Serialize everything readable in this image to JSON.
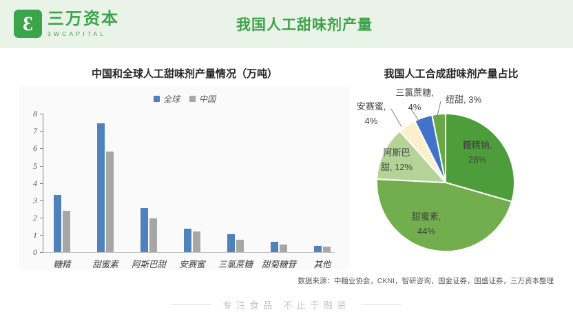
{
  "header": {
    "logo": {
      "name": "三万资本",
      "subname": "3WCAPITAL"
    },
    "title": "我国人工甜味剂产量"
  },
  "chart_data": [
    {
      "type": "bar",
      "title": "中国和全球人工甜味剂产量情况（万吨）",
      "categories": [
        "糖精",
        "甜蜜素",
        "阿斯巴甜",
        "安赛蜜",
        "三氯蔗糖",
        "甜菊糖苷",
        "其他"
      ],
      "series": [
        {
          "name": "全球",
          "color": "#4F81BD",
          "values": [
            3.3,
            7.45,
            2.55,
            1.35,
            1.05,
            0.6,
            0.35
          ]
        },
        {
          "name": "中国",
          "color": "#A7A7A7",
          "values": [
            2.4,
            5.8,
            1.95,
            1.2,
            0.7,
            0.45,
            0.3
          ]
        }
      ],
      "ylim": [
        0,
        8
      ],
      "yticks": [
        0,
        1,
        2,
        3,
        4,
        5,
        6,
        7,
        8
      ],
      "legend_position": "top",
      "grid": false
    },
    {
      "type": "pie",
      "title": "我国人工合成甜味剂产量占比",
      "slices": [
        {
          "label": "糖精钠",
          "pct": 28,
          "color": "#4E9D3B",
          "label_lines": [
            "糖精钠,",
            "28%"
          ]
        },
        {
          "label": "甜蜜素",
          "pct": 44,
          "color": "#72AE4E",
          "label_lines": [
            "甜蜜素,",
            "44%"
          ]
        },
        {
          "label": "阿斯巴甜",
          "pct": 12,
          "color": "#B3D496",
          "label_lines": [
            "阿斯巴",
            "甜, 12%"
          ]
        },
        {
          "label": "安赛蜜",
          "pct": 4,
          "color": "#FBF0CE",
          "label_lines": [
            "安赛蜜,",
            "4%"
          ]
        },
        {
          "label": "三氯蔗糖",
          "pct": 4,
          "color": "#4273C8",
          "label_lines": [
            "三氯蔗糖,",
            "4%"
          ]
        },
        {
          "label": "纽甜",
          "pct": 3,
          "color": "#68A845",
          "label_lines": [
            "纽甜, 3%"
          ]
        }
      ]
    }
  ],
  "source_note": "数据来源：中糖业协会，CKNI，智研咨询，国金证券，国盛证券，三万资本整理",
  "footer": {
    "slogan": "专注食品  不止于融资"
  }
}
